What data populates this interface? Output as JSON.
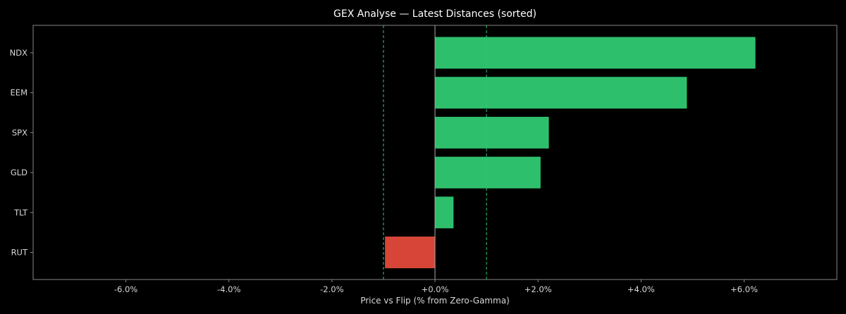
{
  "chart_data": {
    "type": "bar",
    "orientation": "horizontal",
    "title": "GEX Analyse — Latest Distances (sorted)",
    "xlabel": "Price vs Flip (% from Zero-Gamma)",
    "ylabel": "",
    "categories": [
      "NDX",
      "EEM",
      "SPX",
      "GLD",
      "TLT",
      "RUT"
    ],
    "values": [
      6.22,
      4.89,
      2.21,
      2.05,
      0.36,
      -0.97
    ],
    "xlim": [
      -7.8,
      7.8
    ],
    "xticks": [
      -6,
      -4,
      -2,
      0,
      2,
      4,
      6
    ],
    "xtick_labels": [
      "-6.0%",
      "-4.0%",
      "-2.0%",
      "+0.0%",
      "+2.0%",
      "+4.0%",
      "+6.0%"
    ],
    "reference_lines": [
      {
        "x": -1.0,
        "style": "dashed",
        "color": "#2ecc71"
      },
      {
        "x": 0.0,
        "style": "solid",
        "color": "#aaaaaa"
      },
      {
        "x": 1.0,
        "style": "dashed",
        "color": "#2ecc71"
      }
    ],
    "grid": false,
    "legend": "none",
    "colors": {
      "positive": "#2ebf6c",
      "negative": "#d64538",
      "background": "#000000",
      "axis": "#888888",
      "text": "#d8d8d8"
    }
  }
}
